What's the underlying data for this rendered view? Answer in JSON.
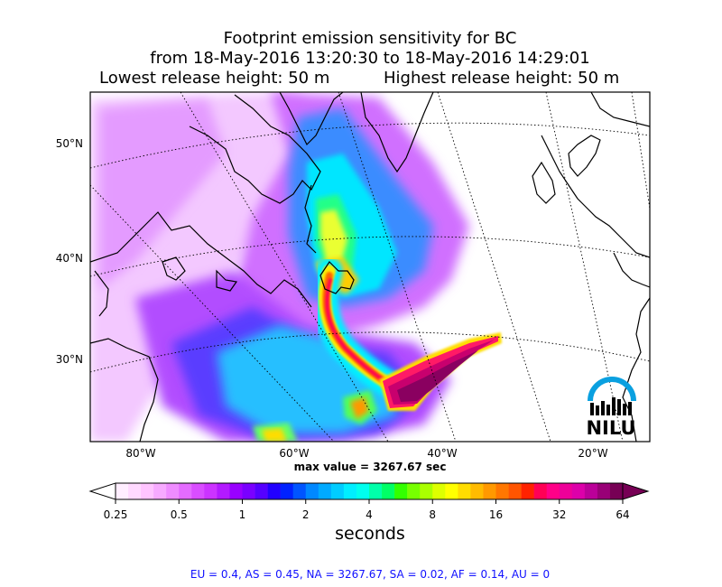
{
  "title": {
    "line1": "Footprint emission sensitivity for BC",
    "line2": "from 18-May-2016 13:20:30 to 18-May-2016 14:29:01",
    "line3_left": "Lowest release height: 50 m",
    "line3_right": "Highest release height: 50 m"
  },
  "map": {
    "lat_labels": [
      "50°N",
      "40°N",
      "30°N"
    ],
    "lon_labels": [
      "80°W",
      "60°W",
      "40°W",
      "20°W"
    ],
    "logo_text": "NILU",
    "logo_color": "#0aa0e0"
  },
  "max_value": "max value = 3267.67 sec",
  "colorbar": {
    "tick_labels": [
      "0.25",
      "0.5",
      "1",
      "2",
      "4",
      "8",
      "16",
      "32",
      "64"
    ],
    "units": "seconds",
    "colors": [
      "#ffeeff",
      "#ffd9ff",
      "#ffc4ff",
      "#f7aaff",
      "#ef8cff",
      "#e46bff",
      "#d94dff",
      "#cc33ff",
      "#b31aff",
      "#9900ff",
      "#7a00ff",
      "#5500ff",
      "#2200ff",
      "#0022ff",
      "#0055ff",
      "#0088ff",
      "#00aaff",
      "#00ccff",
      "#00eeff",
      "#00ffee",
      "#00ffaa",
      "#00ff66",
      "#33ff00",
      "#77ff00",
      "#aaff00",
      "#ddff00",
      "#ffff00",
      "#ffdd00",
      "#ffbb00",
      "#ff9900",
      "#ff7700",
      "#ff5500",
      "#ff2200",
      "#ff0055",
      "#ff0088",
      "#ee0099",
      "#dd00aa",
      "#bb0099",
      "#990077",
      "#770055"
    ]
  },
  "footer": "EU = 0.4,  AS = 0.45,  NA = 3267.67,  SA = 0.02,  AF = 0.14,  AU = 0"
}
